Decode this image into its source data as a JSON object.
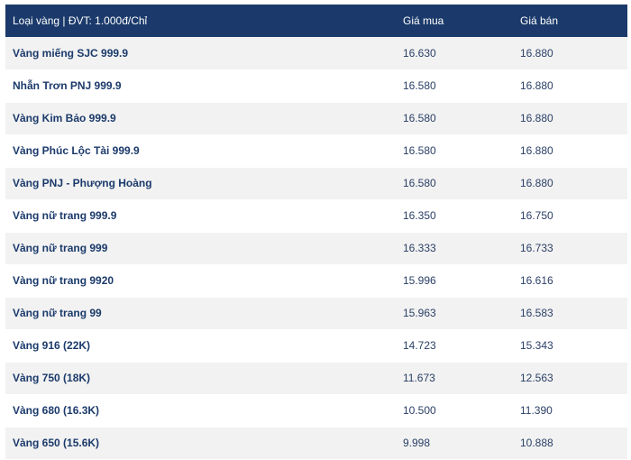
{
  "table": {
    "headers": {
      "name": "Loại vàng | ĐVT: 1.000đ/Chỉ",
      "buy": "Giá mua",
      "sell": "Giá bán"
    },
    "rows": [
      {
        "name": "Vàng miếng SJC 999.9",
        "buy": "16.630",
        "sell": "16.880"
      },
      {
        "name": "Nhẫn Trơn PNJ 999.9",
        "buy": "16.580",
        "sell": "16.880"
      },
      {
        "name": "Vàng Kim Bảo 999.9",
        "buy": "16.580",
        "sell": "16.880"
      },
      {
        "name": "Vàng Phúc Lộc Tài 999.9",
        "buy": "16.580",
        "sell": "16.880"
      },
      {
        "name": "Vàng PNJ - Phượng Hoàng",
        "buy": "16.580",
        "sell": "16.880"
      },
      {
        "name": "Vàng nữ trang 999.9",
        "buy": "16.350",
        "sell": "16.750"
      },
      {
        "name": "Vàng nữ trang 999",
        "buy": "16.333",
        "sell": "16.733"
      },
      {
        "name": "Vàng nữ trang 9920",
        "buy": "15.996",
        "sell": "16.616"
      },
      {
        "name": "Vàng nữ trang 99",
        "buy": "15.963",
        "sell": "16.583"
      },
      {
        "name": "Vàng 916 (22K)",
        "buy": "14.723",
        "sell": "15.343"
      },
      {
        "name": "Vàng 750 (18K)",
        "buy": "11.673",
        "sell": "12.563"
      },
      {
        "name": "Vàng 680 (16.3K)",
        "buy": "10.500",
        "sell": "11.390"
      },
      {
        "name": "Vàng 650 (15.6K)",
        "buy": "9.998",
        "sell": "10.888"
      }
    ]
  },
  "colors": {
    "header_bg": "#1b3a6b",
    "row_alt_bg": "#f2f2f2",
    "text": "#1b3a6b"
  }
}
